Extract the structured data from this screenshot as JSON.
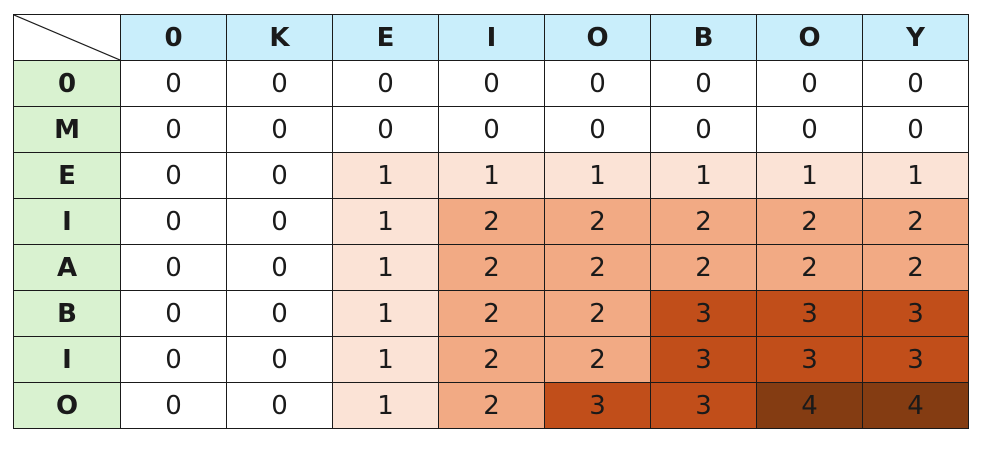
{
  "table": {
    "col_headers": [
      "0",
      "K",
      "E",
      "I",
      "O",
      "B",
      "O",
      "Y"
    ],
    "row_headers": [
      "0",
      "M",
      "E",
      "I",
      "A",
      "B",
      "I",
      "O"
    ],
    "cells": [
      [
        0,
        0,
        0,
        0,
        0,
        0,
        0,
        0
      ],
      [
        0,
        0,
        0,
        0,
        0,
        0,
        0,
        0
      ],
      [
        0,
        0,
        1,
        1,
        1,
        1,
        1,
        1
      ],
      [
        0,
        0,
        1,
        2,
        2,
        2,
        2,
        2
      ],
      [
        0,
        0,
        1,
        2,
        2,
        2,
        2,
        2
      ],
      [
        0,
        0,
        1,
        2,
        2,
        3,
        3,
        3
      ],
      [
        0,
        0,
        1,
        2,
        2,
        3,
        3,
        3
      ],
      [
        0,
        0,
        1,
        2,
        3,
        3,
        4,
        4
      ]
    ]
  },
  "colors": {
    "header_row_bg": "#c9eefb",
    "header_col_bg": "#d9f2d0",
    "level_0": "#ffffff",
    "level_1": "#fbe3d6",
    "level_2": "#f2aa84",
    "level_3": "#c14e1a",
    "level_4": "#843c12"
  }
}
